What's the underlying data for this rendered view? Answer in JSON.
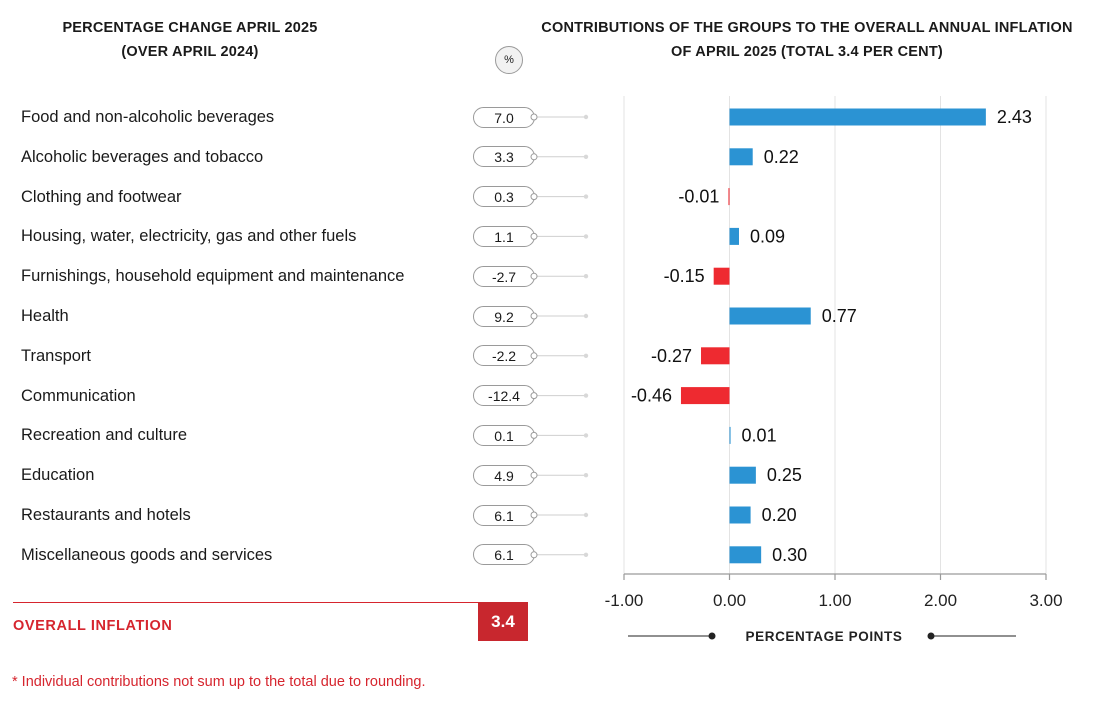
{
  "left_title": {
    "line1": "PERCENTAGE CHANGE APRIL 2025",
    "line2": "(OVER APRIL 2024)"
  },
  "unit_badge": "%",
  "right_title": {
    "line1": "CONTRIBUTIONS OF THE GROUPS TO THE OVERALL ANNUAL INFLATION",
    "line2": "OF APRIL 2025 (TOTAL 3.4 PER CENT)"
  },
  "rows": [
    {
      "label": "Food and non-alcoholic beverages",
      "pct": "7.0"
    },
    {
      "label": "Alcoholic beverages and tobacco",
      "pct": "3.3"
    },
    {
      "label": "Clothing and footwear",
      "pct": "0.3"
    },
    {
      "label": "Housing, water, electricity, gas and other fuels",
      "pct": "1.1"
    },
    {
      "label": "Furnishings, household equipment and maintenance",
      "pct": "-2.7"
    },
    {
      "label": "Health",
      "pct": "9.2"
    },
    {
      "label": "Transport",
      "pct": "-2.2"
    },
    {
      "label": "Communication",
      "pct": "-12.4"
    },
    {
      "label": "Recreation and culture",
      "pct": "0.1"
    },
    {
      "label": "Education",
      "pct": "4.9"
    },
    {
      "label": "Restaurants and hotels",
      "pct": "6.1"
    },
    {
      "label": "Miscellaneous goods and services",
      "pct": "6.1"
    }
  ],
  "overall": {
    "label": "OVERALL INFLATION",
    "value": "3.4"
  },
  "footnote": "* Individual contributions not sum up to the total due to rounding.",
  "colors": {
    "positive": "#2b93d3",
    "negative": "#ee2a30",
    "accent": "#d6252e"
  },
  "chart_data": {
    "type": "bar",
    "orientation": "horizontal",
    "title": "CONTRIBUTIONS OF THE GROUPS TO THE OVERALL ANNUAL INFLATION OF APRIL 2025 (TOTAL 3.4 PER CENT)",
    "xlabel": "PERCENTAGE POINTS",
    "xlim": [
      -1.0,
      3.0
    ],
    "xticks": [
      -1.0,
      0.0,
      1.0,
      2.0,
      3.0
    ],
    "xtick_labels": [
      "-1.00",
      "0.00",
      "1.00",
      "2.00",
      "3.00"
    ],
    "grid": true,
    "categories": [
      "Food and non-alcoholic beverages",
      "Alcoholic beverages and tobacco",
      "Clothing and footwear",
      "Housing, water, electricity, gas and other fuels",
      "Furnishings, household equipment and maintenance",
      "Health",
      "Transport",
      "Communication",
      "Recreation and culture",
      "Education",
      "Restaurants and hotels",
      "Miscellaneous goods and services"
    ],
    "values": [
      2.43,
      0.22,
      -0.01,
      0.09,
      -0.15,
      0.77,
      -0.27,
      -0.46,
      0.01,
      0.25,
      0.2,
      0.3
    ],
    "value_labels": [
      "2.43",
      "0.22",
      "-0.01",
      "0.09",
      "-0.15",
      "0.77",
      "-0.27",
      "-0.46",
      "0.01",
      "0.25",
      "0.20",
      "0.30"
    ]
  }
}
